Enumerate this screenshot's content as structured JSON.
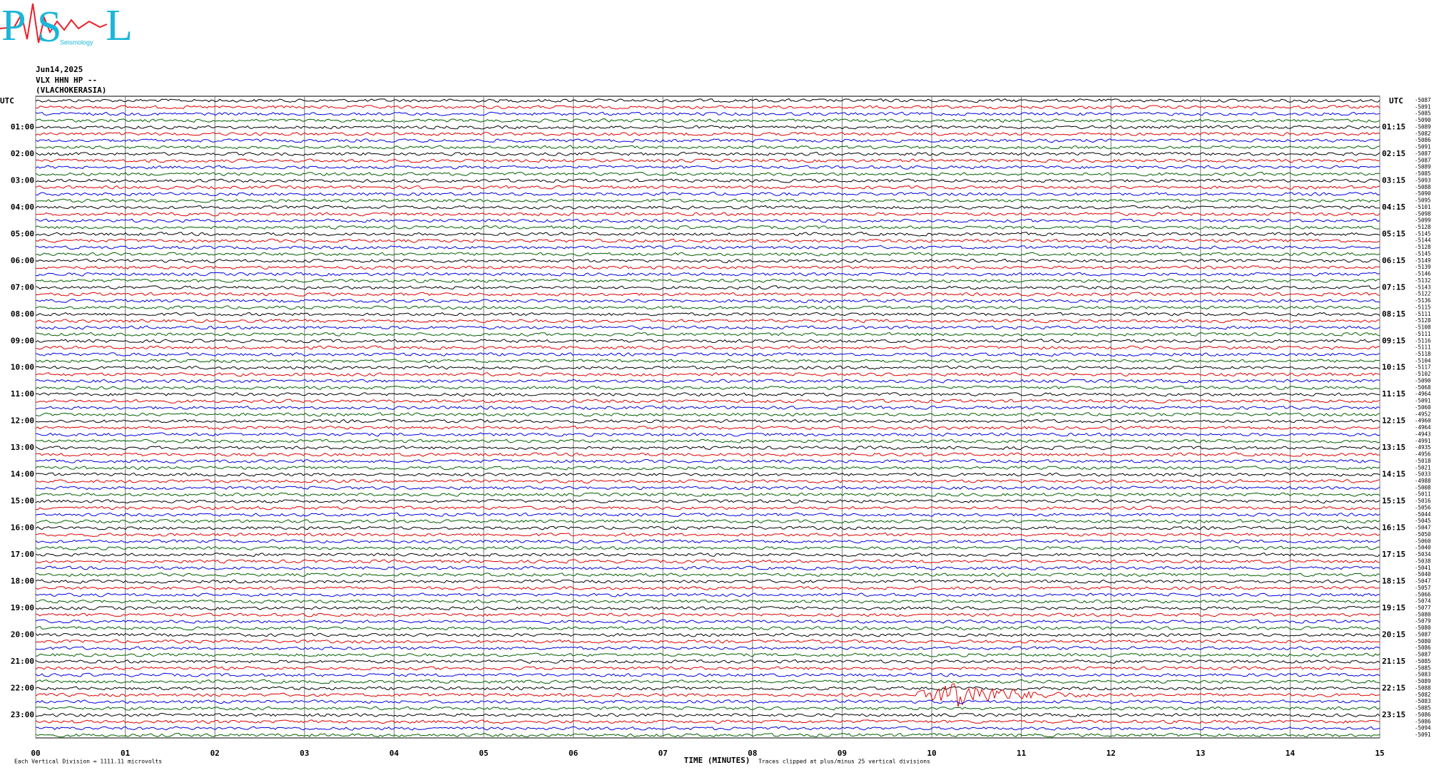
{
  "logo": {
    "letter_1": "P",
    "letter_2": "S",
    "letter_3": "L",
    "subtitle": "Seismology"
  },
  "header": {
    "date": "Jun14,2025",
    "station": "VLX HHN HP --",
    "location": "(VLACHOKERASIA)"
  },
  "left_timezone": "UTC",
  "right_timezone": "UTC",
  "left_hour_labels": [
    "01:00",
    "02:00",
    "03:00",
    "04:00",
    "05:00",
    "06:00",
    "07:00",
    "08:00",
    "09:00",
    "10:00",
    "11:00",
    "12:00",
    "13:00",
    "14:00",
    "15:00",
    "16:00",
    "17:00",
    "18:00",
    "19:00",
    "20:00",
    "21:00",
    "22:00",
    "23:00"
  ],
  "right_hour_labels": [
    "01:15",
    "02:15",
    "03:15",
    "04:15",
    "05:15",
    "06:15",
    "07:15",
    "08:15",
    "09:15",
    "10:15",
    "11:15",
    "12:15",
    "13:15",
    "14:15",
    "15:15",
    "16:15",
    "17:15",
    "18:15",
    "19:15",
    "20:15",
    "21:15",
    "22:15",
    "23:15"
  ],
  "minute_ticks": [
    "00",
    "01",
    "02",
    "03",
    "04",
    "05",
    "06",
    "07",
    "08",
    "09",
    "10",
    "11",
    "12",
    "13",
    "14",
    "15"
  ],
  "x_axis_title": "TIME (MINUTES)",
  "footer_scale": "Each Vertical Division = 1111.11 microvolts",
  "footer_note": "Traces clipped at plus/minus 25 vertical divisions",
  "trace_colors": [
    "#000000",
    "#e00000",
    "#0000e0",
    "#006000"
  ],
  "trace_offsets": [
    -5087,
    -5091,
    -5085,
    -5090,
    -5089,
    -5082,
    -5086,
    -5091,
    -5087,
    -5087,
    -5089,
    -5085,
    -5093,
    -5088,
    -5090,
    -5095,
    -5101,
    -5098,
    -5099,
    -5128,
    -5145,
    -5144,
    -5128,
    -5145,
    -5149,
    -5139,
    -5146,
    -5132,
    -5143,
    -5122,
    -5136,
    -5115,
    -5111,
    -5128,
    -5108,
    -5111,
    -5116,
    -5111,
    -5118,
    -5104,
    -5117,
    -5102,
    -5090,
    -5068,
    -4964,
    -5091,
    -5060,
    -4952,
    -4960,
    -4964,
    -4943,
    -4991,
    -4935,
    -4956,
    -5018,
    -5021,
    -5033,
    -4988,
    -5008,
    -5011,
    -5016,
    -5056,
    -5044,
    -5045,
    -5047,
    -5050,
    -5060,
    -5040,
    -5034,
    -5038,
    -5041,
    -5040,
    -5047,
    -5057,
    -5066,
    -5074,
    -5077,
    -5080,
    -5079,
    -5080,
    -5087,
    -5080,
    -5086,
    -5087,
    -5085,
    -5085,
    -5083,
    -5089,
    -5088,
    -5082,
    -5083,
    -5085,
    -5086,
    -5086,
    -5094,
    -5091
  ]
}
